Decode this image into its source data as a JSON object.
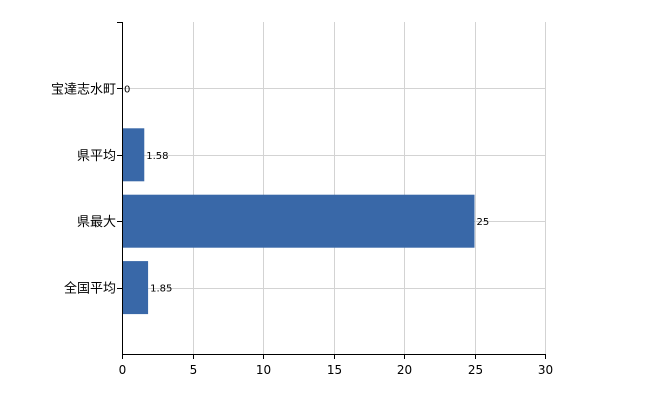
{
  "chart_data": {
    "type": "bar",
    "orientation": "horizontal",
    "categories": [
      "宝達志水町",
      "県平均",
      "県最大",
      "全国平均"
    ],
    "values": [
      0,
      1.58,
      25,
      1.85
    ],
    "value_labels": [
      "0",
      "1.58",
      "25",
      "1.85"
    ],
    "xlim": [
      0,
      30
    ],
    "x_ticks": [
      0,
      5,
      10,
      15,
      20,
      25,
      30
    ],
    "x_tick_labels": [
      "0",
      "5",
      "10",
      "15",
      "20",
      "25",
      "30"
    ],
    "grid": true,
    "bar_color": "#3968a8",
    "title": "",
    "xlabel": "",
    "ylabel": ""
  }
}
